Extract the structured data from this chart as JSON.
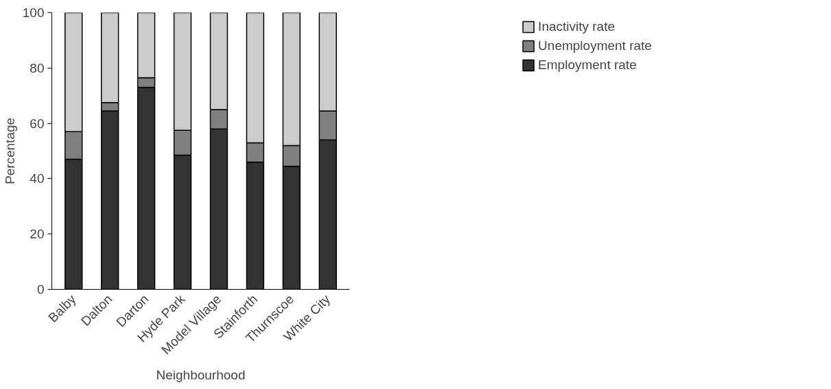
{
  "chart_data": {
    "type": "bar",
    "stacked": true,
    "xlabel": "Neighbourhood",
    "ylabel": "Percentage",
    "categories": [
      "Balby",
      "Dalton",
      "Darton",
      "Hyde Park",
      "Model Village",
      "Stainforth",
      "Thurnscoe",
      "White City"
    ],
    "series": [
      {
        "name": "Employment rate",
        "color": "#333333",
        "values": [
          47,
          64.5,
          73,
          48.5,
          58,
          46,
          44.5,
          54
        ]
      },
      {
        "name": "Unemployment rate",
        "color": "#808080",
        "values": [
          10,
          3,
          3.5,
          9,
          7,
          7,
          7.5,
          10.5
        ]
      },
      {
        "name": "Inactivity rate",
        "color": "#cccccc",
        "values": [
          43,
          32.5,
          23.5,
          42.5,
          35,
          47,
          48,
          35.5
        ]
      }
    ],
    "ylim": [
      0,
      100
    ],
    "yticks": [
      0,
      20,
      40,
      60,
      80,
      100
    ],
    "grid": false,
    "legend": "top right"
  }
}
